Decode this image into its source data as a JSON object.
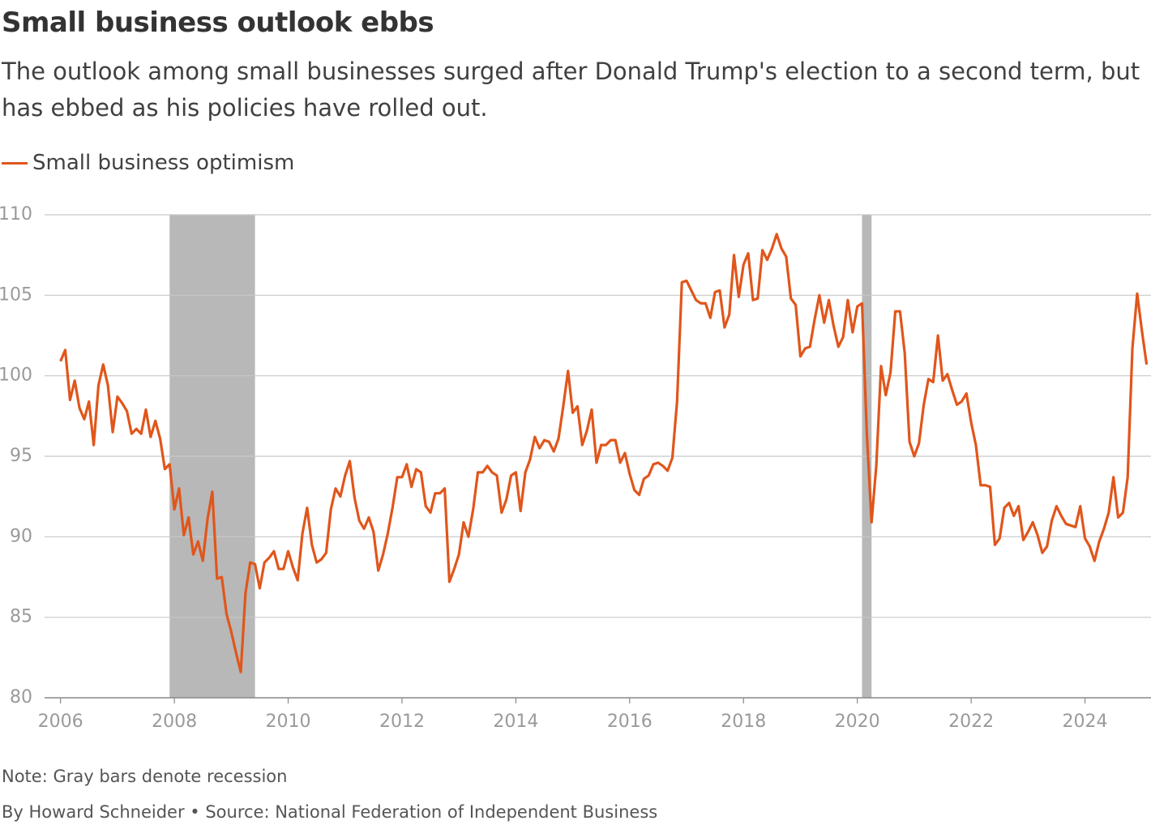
{
  "chart_data": {
    "type": "line",
    "title": "Small business outlook ebbs",
    "subtitle": "The outlook among small businesses surged after Donald Trump's election to a second term, but has ebbed as his policies have rolled out.",
    "note": "Note: Gray bars denote recession",
    "source": "By Howard Schneider • Source: National Federation of Independent Business",
    "legend": "top-left",
    "grid": true,
    "xlim": [
      2005.72,
      2025.16
    ],
    "xticks": [
      2006,
      2008,
      2010,
      2012,
      2014,
      2016,
      2018,
      2020,
      2022,
      2024
    ],
    "ylim": [
      80,
      110
    ],
    "yticks": [
      80,
      85,
      90,
      95,
      100,
      105,
      110
    ],
    "shaded_ranges": {
      "color": "#b8b8b8",
      "ranges": [
        [
          2007.917,
          2009.417
        ],
        [
          2020.083,
          2020.25
        ]
      ]
    },
    "x": [
      2006,
      2006.083,
      2006.167,
      2006.25,
      2006.333,
      2006.417,
      2006.5,
      2006.583,
      2006.667,
      2006.75,
      2006.833,
      2006.917,
      2007,
      2007.083,
      2007.167,
      2007.25,
      2007.333,
      2007.417,
      2007.5,
      2007.583,
      2007.667,
      2007.75,
      2007.833,
      2007.917,
      2008,
      2008.083,
      2008.167,
      2008.25,
      2008.333,
      2008.417,
      2008.5,
      2008.583,
      2008.667,
      2008.75,
      2008.833,
      2008.917,
      2009,
      2009.083,
      2009.167,
      2009.25,
      2009.333,
      2009.417,
      2009.5,
      2009.583,
      2009.667,
      2009.75,
      2009.833,
      2009.917,
      2010,
      2010.083,
      2010.167,
      2010.25,
      2010.333,
      2010.417,
      2010.5,
      2010.583,
      2010.667,
      2010.75,
      2010.833,
      2010.917,
      2011,
      2011.083,
      2011.167,
      2011.25,
      2011.333,
      2011.417,
      2011.5,
      2011.583,
      2011.667,
      2011.75,
      2011.833,
      2011.917,
      2012,
      2012.083,
      2012.167,
      2012.25,
      2012.333,
      2012.417,
      2012.5,
      2012.583,
      2012.667,
      2012.75,
      2012.833,
      2012.917,
      2013,
      2013.083,
      2013.167,
      2013.25,
      2013.333,
      2013.417,
      2013.5,
      2013.583,
      2013.667,
      2013.75,
      2013.833,
      2013.917,
      2014,
      2014.083,
      2014.167,
      2014.25,
      2014.333,
      2014.417,
      2014.5,
      2014.583,
      2014.667,
      2014.75,
      2014.833,
      2014.917,
      2015,
      2015.083,
      2015.167,
      2015.25,
      2015.333,
      2015.417,
      2015.5,
      2015.583,
      2015.667,
      2015.75,
      2015.833,
      2015.917,
      2016,
      2016.083,
      2016.167,
      2016.25,
      2016.333,
      2016.417,
      2016.5,
      2016.583,
      2016.667,
      2016.75,
      2016.833,
      2016.917,
      2017,
      2017.083,
      2017.167,
      2017.25,
      2017.333,
      2017.417,
      2017.5,
      2017.583,
      2017.667,
      2017.75,
      2017.833,
      2017.917,
      2018,
      2018.083,
      2018.167,
      2018.25,
      2018.333,
      2018.417,
      2018.5,
      2018.583,
      2018.667,
      2018.75,
      2018.833,
      2018.917,
      2019,
      2019.083,
      2019.167,
      2019.25,
      2019.333,
      2019.417,
      2019.5,
      2019.583,
      2019.667,
      2019.75,
      2019.833,
      2019.917,
      2020,
      2020.083,
      2020.167,
      2020.25,
      2020.333,
      2020.417,
      2020.5,
      2020.583,
      2020.667,
      2020.75,
      2020.833,
      2020.917,
      2021,
      2021.083,
      2021.167,
      2021.25,
      2021.333,
      2021.417,
      2021.5,
      2021.583,
      2021.667,
      2021.75,
      2021.833,
      2021.917,
      2022,
      2022.083,
      2022.167,
      2022.25,
      2022.333,
      2022.417,
      2022.5,
      2022.583,
      2022.667,
      2022.75,
      2022.833,
      2022.917,
      2023,
      2023.083,
      2023.167,
      2023.25,
      2023.333,
      2023.417,
      2023.5,
      2023.583,
      2023.667,
      2023.75,
      2023.833,
      2023.917,
      2024,
      2024.083,
      2024.167,
      2024.25,
      2024.333,
      2024.417,
      2024.5,
      2024.583,
      2024.667,
      2024.75,
      2024.833,
      2024.917,
      2025,
      2025.083
    ],
    "series": [
      {
        "name": "Small business optimism",
        "color": "#e0561b",
        "values": [
          100.9,
          101.6,
          98.5,
          99.7,
          98.0,
          97.3,
          98.4,
          95.7,
          99.4,
          100.7,
          99.4,
          96.5,
          98.7,
          98.3,
          97.8,
          96.4,
          96.7,
          96.4,
          97.9,
          96.2,
          97.2,
          96.1,
          94.2,
          94.5,
          91.7,
          93.0,
          90.1,
          91.2,
          88.9,
          89.7,
          88.5,
          91.1,
          92.8,
          87.4,
          87.5,
          85.2,
          84.1,
          82.8,
          81.6,
          86.5,
          88.4,
          88.3,
          86.8,
          88.4,
          88.7,
          89.1,
          88.0,
          88.0,
          89.1,
          88.1,
          87.3,
          90.2,
          91.8,
          89.5,
          88.4,
          88.6,
          89.0,
          91.7,
          93.0,
          92.5,
          93.8,
          94.7,
          92.4,
          91.0,
          90.5,
          91.2,
          90.3,
          87.9,
          88.9,
          90.2,
          91.8,
          93.7,
          93.7,
          94.5,
          93.1,
          94.2,
          94.0,
          91.9,
          91.5,
          92.7,
          92.7,
          93.0,
          87.2,
          88.0,
          88.9,
          90.9,
          90.0,
          91.7,
          94.0,
          94.0,
          94.4,
          94.0,
          93.8,
          91.5,
          92.3,
          93.8,
          94.0,
          91.6,
          94.0,
          94.8,
          96.2,
          95.5,
          96.0,
          95.9,
          95.3,
          96.1,
          98.1,
          100.3,
          97.7,
          98.1,
          95.7,
          96.6,
          97.9,
          94.6,
          95.7,
          95.7,
          96.0,
          96.0,
          94.6,
          95.2,
          93.9,
          92.9,
          92.6,
          93.6,
          93.8,
          94.5,
          94.6,
          94.4,
          94.1,
          94.9,
          98.4,
          105.8,
          105.9,
          105.3,
          104.7,
          104.5,
          104.5,
          103.6,
          105.2,
          105.3,
          103.0,
          103.8,
          107.5,
          104.9,
          106.9,
          107.6,
          104.7,
          104.8,
          107.8,
          107.2,
          107.9,
          108.8,
          107.9,
          107.4,
          104.8,
          104.4,
          101.2,
          101.7,
          101.8,
          103.5,
          105.0,
          103.3,
          104.7,
          103.1,
          101.8,
          102.4,
          104.7,
          102.7,
          104.3,
          104.5,
          96.4,
          90.9,
          94.4,
          100.6,
          98.8,
          100.2,
          104.0,
          104.0,
          101.4,
          95.9,
          95.0,
          95.8,
          98.2,
          99.8,
          99.6,
          102.5,
          99.7,
          100.1,
          99.1,
          98.2,
          98.4,
          98.9,
          97.1,
          95.7,
          93.2,
          93.2,
          93.1,
          89.5,
          89.9,
          91.8,
          92.1,
          91.3,
          91.9,
          89.8,
          90.3,
          90.9,
          90.1,
          89.0,
          89.4,
          91.0,
          91.9,
          91.3,
          90.8,
          90.7,
          90.6,
          91.9,
          89.9,
          89.4,
          88.5,
          89.7,
          90.5,
          91.5,
          93.7,
          91.2,
          91.5,
          93.7,
          101.7,
          105.1,
          102.8,
          100.7
        ]
      }
    ]
  }
}
